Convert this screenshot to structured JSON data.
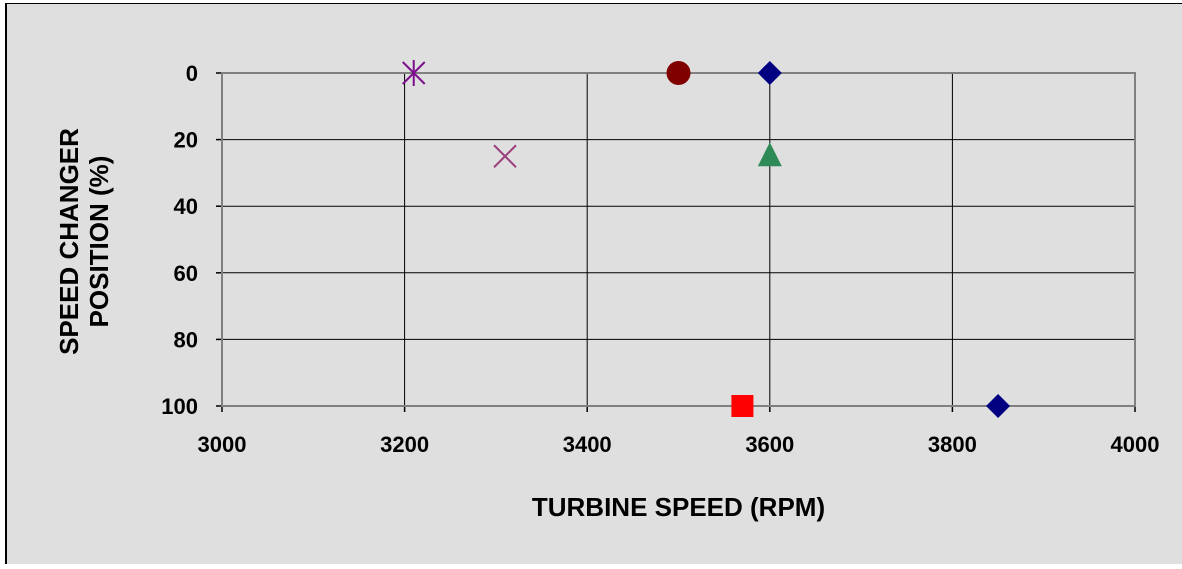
{
  "chart_data": {
    "type": "scatter",
    "xlabel": "TURBINE SPEED (RPM)",
    "ylabel_lines": [
      "SPEED CHANGER",
      "POSITION (%)"
    ],
    "xlim": [
      3000,
      4000
    ],
    "ylim": [
      0,
      100
    ],
    "y_inverted": true,
    "xticks": [
      "3000",
      "3200",
      "3400",
      "3600",
      "3800",
      "4000"
    ],
    "yticks": [
      "0",
      "20",
      "40",
      "60",
      "80",
      "100"
    ],
    "grid": true,
    "legend": "none",
    "series": [
      {
        "marker": "diamond",
        "color": "#000080",
        "points": [
          {
            "x": 3600,
            "y": 0
          },
          {
            "x": 3850,
            "y": 100
          }
        ]
      },
      {
        "marker": "square",
        "color": "#ff0000",
        "points": [
          {
            "x": 3570,
            "y": 100
          }
        ]
      },
      {
        "marker": "triangle",
        "color": "#2e8b57",
        "points": [
          {
            "x": 3600,
            "y": 25
          }
        ]
      },
      {
        "marker": "x",
        "color": "#9c3f7c",
        "points": [
          {
            "x": 3310,
            "y": 25
          }
        ]
      },
      {
        "marker": "star",
        "color": "#7b0f8c",
        "points": [
          {
            "x": 3210,
            "y": 0
          }
        ]
      },
      {
        "marker": "circle",
        "color": "#800000",
        "points": [
          {
            "x": 3500,
            "y": 0
          }
        ]
      }
    ]
  }
}
